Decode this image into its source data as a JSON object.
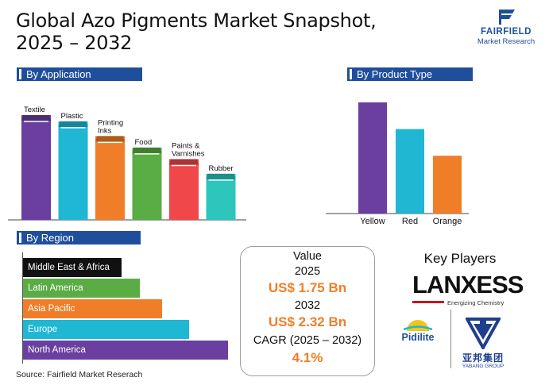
{
  "title": "Global Azo Pigments Market Snapshot, 2025 – 2032",
  "brand": {
    "line1": "FAIRFIELD",
    "line2": "Market Research",
    "color": "#1f4e9c"
  },
  "sections": {
    "application": "By Application",
    "product_type": "By Product Type",
    "region": "By Region"
  },
  "snapshot": {
    "value_label": "Value",
    "year1": "2025",
    "value1": "US$ 1.75 Bn",
    "year2": "2032",
    "value2": "US$ 2.32 Bn",
    "cagr_label": "CAGR (2025 – 2032)",
    "cagr_value": "4.1%"
  },
  "key_players": {
    "title": "Key Players",
    "lanxess": "LANXESS",
    "lanxess_tag": "Energizing Chemistry",
    "pidilite": "Pidilite",
    "yabang_cn": "亚邦集团",
    "yabang_en": "YABANG GROUP"
  },
  "source": "Source: Fairfield Market Reserach",
  "chart_data": [
    {
      "type": "bar",
      "section": "By Application",
      "categories": [
        "Textile",
        "Plastic",
        "Printing Inks",
        "Food",
        "Paints & Varnishes",
        "Rubber"
      ],
      "values": [
        100,
        94,
        80,
        69,
        58,
        44
      ],
      "colors": [
        "#6a3fa0",
        "#1fb7d4",
        "#f07e28",
        "#5aac44",
        "#f0484a",
        "#2cc6bd"
      ]
    },
    {
      "type": "bar",
      "section": "By Product Type",
      "categories": [
        "Yellow",
        "Red",
        "Orange"
      ],
      "values": [
        100,
        76,
        52
      ],
      "colors": [
        "#6a3fa0",
        "#1fb7d4",
        "#f07e28"
      ]
    },
    {
      "type": "bar",
      "orientation": "horizontal",
      "section": "By Region",
      "categories": [
        "Middle East & Africa",
        "Latin America",
        "Asia Pacific",
        "Europe",
        "North America"
      ],
      "values": [
        48,
        57,
        68,
        81,
        100
      ],
      "colors": [
        "#111111",
        "#5aac44",
        "#f07e28",
        "#1fb7d4",
        "#6a3fa0"
      ]
    }
  ]
}
